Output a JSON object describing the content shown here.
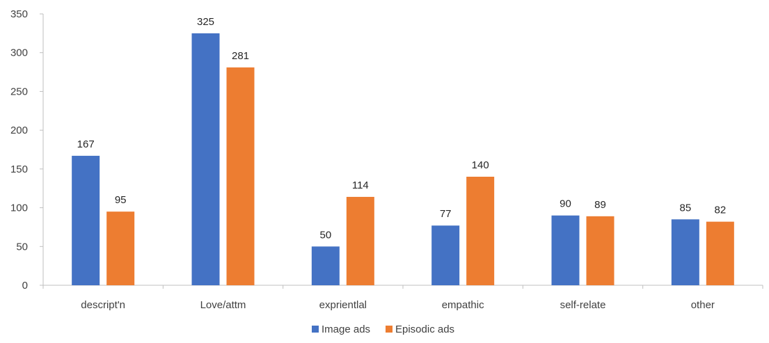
{
  "chart_data": {
    "type": "bar",
    "categories": [
      "descript'n",
      "Love/attm",
      "exprientlal",
      "empathic",
      "self-relate",
      "other"
    ],
    "series": [
      {
        "name": "Image ads",
        "values": [
          167,
          325,
          50,
          77,
          90,
          85
        ],
        "color": "#4472C4"
      },
      {
        "name": "Episodic ads",
        "values": [
          95,
          281,
          114,
          140,
          89,
          82
        ],
        "color": "#ED7D31"
      }
    ],
    "ylim": [
      0,
      350
    ],
    "yticks": [
      0,
      50,
      100,
      150,
      200,
      250,
      300,
      350
    ],
    "grid": false,
    "legend_position": "bottom",
    "data_labels": true
  }
}
